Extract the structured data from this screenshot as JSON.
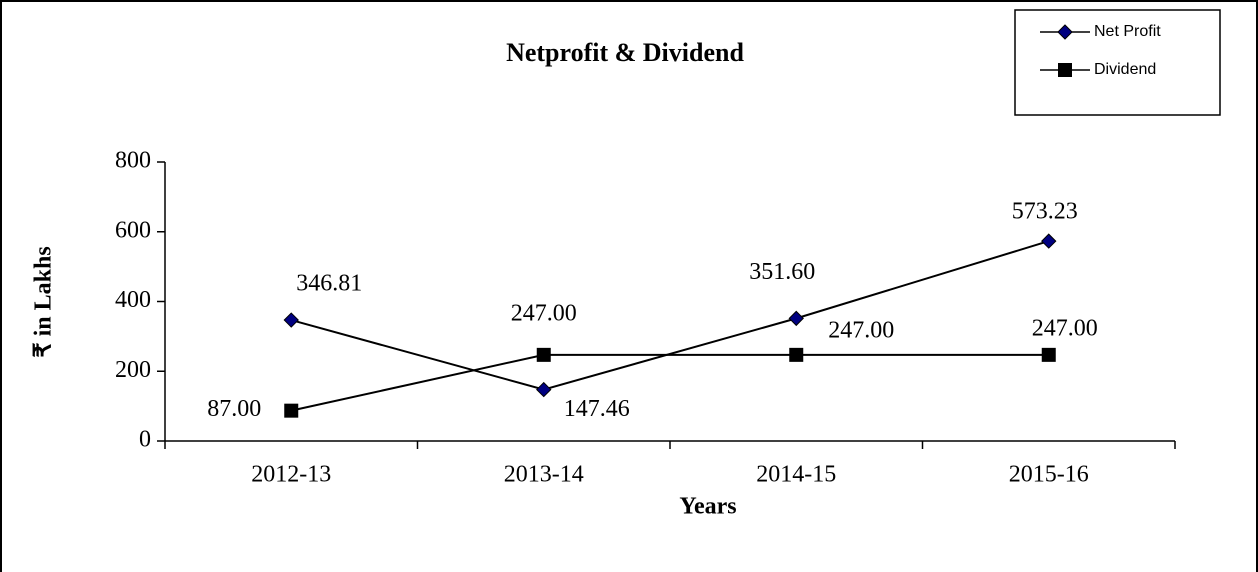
{
  "chart_data": {
    "type": "line",
    "title": "Netprofit & Dividend",
    "x_label": "Years",
    "y_label": "₹ in Lakhs",
    "categories": [
      "2012-13",
      "2013-14",
      "2014-15",
      "2015-16"
    ],
    "series": [
      {
        "name": "Net Profit",
        "color": "#000080",
        "marker": "diamond",
        "values": [
          346.81,
          147.46,
          351.6,
          573.23
        ],
        "value_labels": [
          "346.81",
          "147.46",
          "351.60",
          "573.23"
        ]
      },
      {
        "name": "Dividend",
        "color": "#000000",
        "marker": "square",
        "values": [
          87,
          247,
          247,
          247
        ],
        "value_labels": [
          "87.00",
          "247.00",
          "247.00",
          "247.00"
        ]
      }
    ],
    "ylim": [
      0,
      800
    ],
    "yticks": [
      0,
      200,
      400,
      600,
      800
    ],
    "grid": false,
    "legend": "upper right"
  }
}
